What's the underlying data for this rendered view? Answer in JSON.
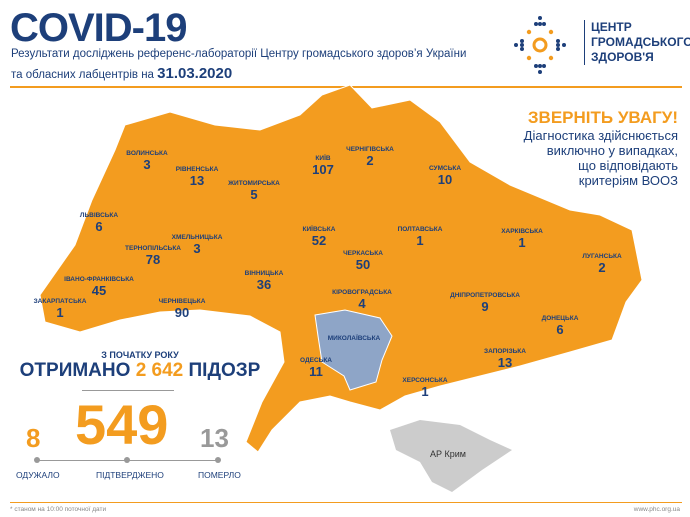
{
  "header": {
    "title": "COVID-19",
    "subtitle_line1": "Результати досліджень референс-лабораторії Центру громадського здоров’я України",
    "subtitle_line2": "та обласних лабцентрів на",
    "date": "31.03.2020"
  },
  "logo": {
    "line1": "ЦЕНТР",
    "line2": "ГРОМАДСЬКОГО",
    "line3": "ЗДОРОВ'Я"
  },
  "notice": {
    "heading": "ЗВЕРНІТЬ УВАГУ!",
    "line1": "Діагностика здійснюється",
    "line2": "виключно у випадках,",
    "line3": "що відповідають",
    "line4": "критеріям ВООЗ"
  },
  "colors": {
    "brand_blue": "#1d3f7a",
    "accent_orange": "#f39c1f",
    "region": "#f39c1f",
    "no_cases": "#8ea5c7",
    "crimea": "#cccccc"
  },
  "regions": [
    {
      "name": "ВОЛИНСЬКА",
      "cases": "3"
    },
    {
      "name": "РІВНЕНСЬКА",
      "cases": "13"
    },
    {
      "name": "ЖИТОМИРСЬКА",
      "cases": "5"
    },
    {
      "name": "КИЇВ",
      "cases": "107"
    },
    {
      "name": "ЧЕРНІГІВСЬКА",
      "cases": "2"
    },
    {
      "name": "СУМСЬКА",
      "cases": "10"
    },
    {
      "name": "ЛЬВІВСЬКА",
      "cases": "6"
    },
    {
      "name": "ТЕРНОПІЛЬСЬКА",
      "cases": "78"
    },
    {
      "name": "ХМЕЛЬНИЦЬКА",
      "cases": "3"
    },
    {
      "name": "КИЇВСЬКА",
      "cases": "52"
    },
    {
      "name": "ПОЛТАВСЬКА",
      "cases": "1"
    },
    {
      "name": "ХАРКІВСЬКА",
      "cases": "1"
    },
    {
      "name": "ЛУГАНСЬКА",
      "cases": "2"
    },
    {
      "name": "ІВАНО-ФРАНКІВСЬКА",
      "cases": "45"
    },
    {
      "name": "ЗАКАРПАТСЬКА",
      "cases": "1"
    },
    {
      "name": "ЧЕРНІВЕЦЬКА",
      "cases": "90"
    },
    {
      "name": "ВІННИЦЬКА",
      "cases": "36"
    },
    {
      "name": "ЧЕРКАСЬКА",
      "cases": "50"
    },
    {
      "name": "КІРОВОГРАДСЬКА",
      "cases": "4"
    },
    {
      "name": "ДНІПРОПЕТРОВСЬКА",
      "cases": "9"
    },
    {
      "name": "ДОНЕЦЬКА",
      "cases": "6"
    },
    {
      "name": "ЗАПОРІЗЬКА",
      "cases": "13"
    },
    {
      "name": "МИКОЛАЇВСЬКА",
      "cases": ""
    },
    {
      "name": "ОДЕСЬКА",
      "cases": "11"
    },
    {
      "name": "ХЕРСОНСЬКА",
      "cases": "1"
    },
    {
      "name": "АР Крим",
      "cases": ""
    }
  ],
  "summary": {
    "since": "З ПОЧАТКУ РОКУ",
    "received_prefix": "ОТРИМАНО",
    "suspected": "2 642",
    "received_suffix": "ПІДОЗР",
    "recovered": "8",
    "confirmed": "549",
    "deaths": "13",
    "recovered_label": "ОДУЖАЛО",
    "confirmed_label": "ПІДТВЕРДЖЕНО",
    "deaths_label": "ПОМЕРЛО"
  },
  "footer": {
    "note": "* станом на 10:00 поточної дати",
    "url": "www.phc.org.ua"
  }
}
